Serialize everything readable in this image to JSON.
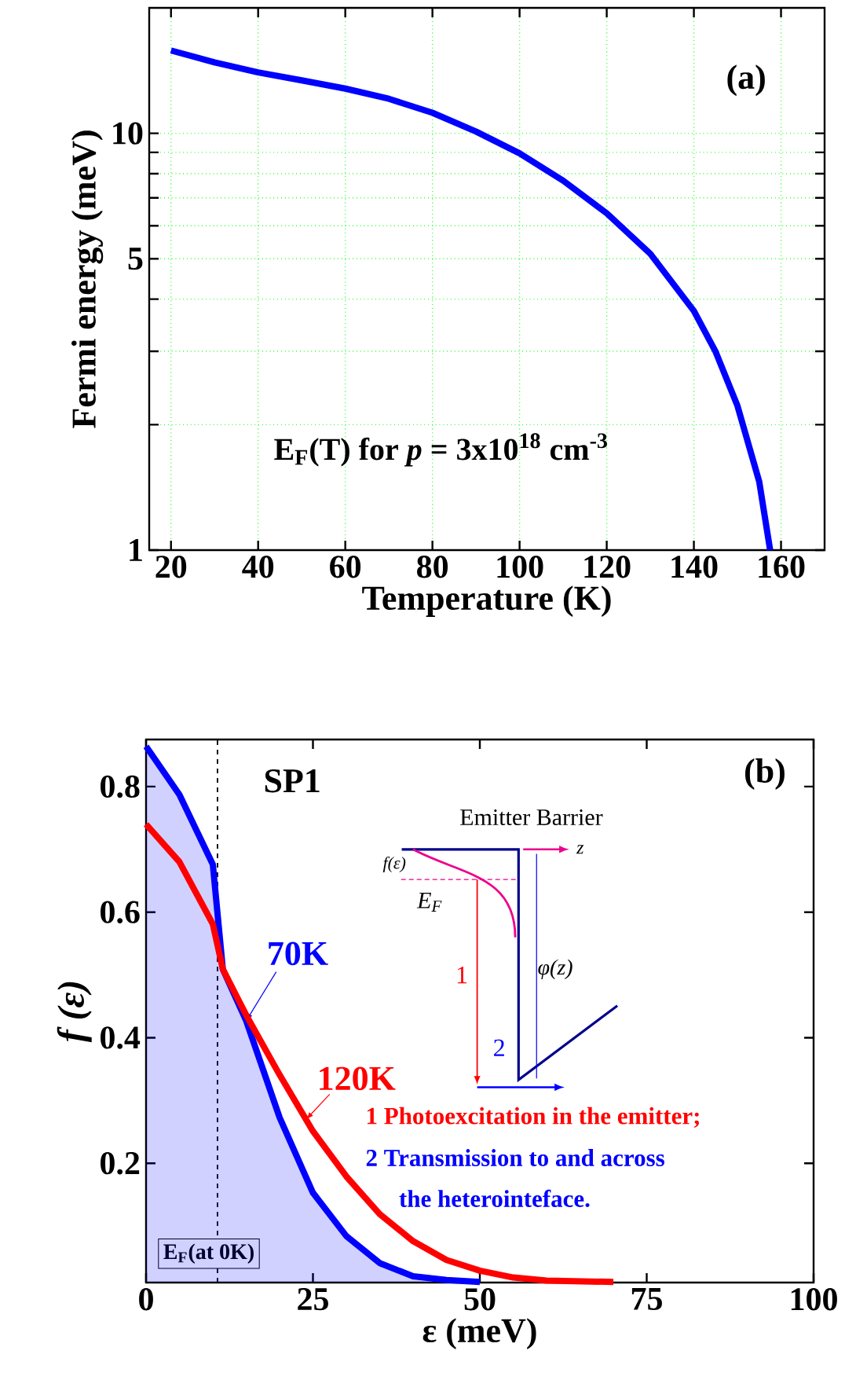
{
  "chart_data": [
    {
      "type": "line",
      "xlabel": "Temperature (K)",
      "ylabel": "Fermi energy (meV)",
      "log": "y",
      "grid": true,
      "xlim": [
        15,
        170
      ],
      "xticks": [
        20,
        40,
        60,
        80,
        100,
        120,
        140,
        160
      ],
      "ylim": [
        1,
        20
      ],
      "yticks": [
        1,
        {
          "value": 2,
          "label": null
        },
        {
          "value": 3,
          "label": null
        },
        {
          "value": 4,
          "label": null
        },
        5,
        {
          "value": 6,
          "label": null
        },
        {
          "value": 7,
          "label": null
        },
        {
          "value": 8,
          "label": null
        },
        {
          "value": 9,
          "label": null
        },
        10
      ],
      "series": [
        {
          "color": "#0000ff",
          "x": [
            20,
            30,
            40,
            50,
            60,
            70,
            80,
            90,
            100,
            110,
            120,
            130,
            140,
            145,
            150,
            155,
            157.5
          ],
          "values": [
            15.8,
            14.8,
            14.0,
            13.4,
            12.8,
            12.1,
            11.2,
            10.1,
            8.95,
            7.7,
            6.43,
            5.14,
            3.75,
            2.99,
            2.22,
            1.46,
            1.0
          ]
        }
      ],
      "annotations": [
        "(a)",
        "E$_{F}$(T) for *p* = 3x10$^{18}$ cm$^{-3}$"
      ]
    },
    {
      "type": "line",
      "xlabel": "ε (meV)",
      "ylabel": "f (ε)",
      "xlim": [
        0,
        100
      ],
      "xticks": [
        0,
        25,
        50,
        75,
        100
      ],
      "ylim": [
        0.01,
        0.875
      ],
      "yticks": [
        0.2,
        0.4,
        0.6,
        0.8
      ],
      "series": [
        {
          "name": "70K",
          "type": "area",
          "color": "#0000ff",
          "x": [
            0,
            5,
            10,
            11.5,
            15,
            20,
            25,
            30,
            35,
            40,
            45,
            50
          ],
          "values": [
            0.864,
            0.787,
            0.676,
            0.509,
            0.427,
            0.273,
            0.153,
            0.084,
            0.041,
            0.02,
            0.014,
            0.011
          ]
        },
        {
          "name": "120K",
          "color": "#ff0000",
          "x": [
            0,
            5,
            10,
            11.5,
            15,
            20,
            25,
            30,
            35,
            40,
            45,
            50,
            55,
            60,
            70
          ],
          "values": [
            0.74,
            0.68,
            0.581,
            0.509,
            0.436,
            0.341,
            0.251,
            0.179,
            0.119,
            0.076,
            0.046,
            0.029,
            0.018,
            0.013,
            0.011
          ]
        }
      ],
      "ref_lines": [
        {
          "axis": "x",
          "value": 10.7,
          "label": "E$_{F}$(at 0K)",
          "line_style": "dashed",
          "color": "#000000"
        }
      ],
      "annotations": [
        "(b)",
        "SP1",
        "Emitter Barrier",
        "z",
        "f(ε)",
        "E$_{F}$",
        "1",
        "2",
        "φ(z)",
        "1 Photoexcitation in the emitter;",
        "2 Transmission to and across",
        "the heterointeface."
      ]
    }
  ]
}
